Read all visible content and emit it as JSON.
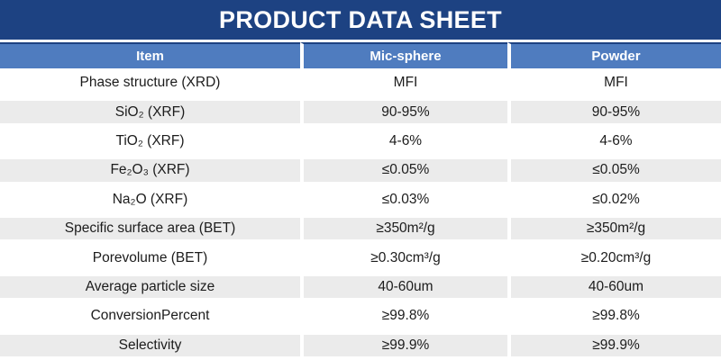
{
  "title": "PRODUCT DATA SHEET",
  "colors": {
    "banner": "#1D4282",
    "header": "#4F7CBF",
    "row_alt": "#EBEBEB",
    "text_dark": "#1C1C1C"
  },
  "table": {
    "columns": [
      "Item",
      "Mic-sphere",
      "Powder"
    ],
    "rows": [
      {
        "item": "Phase structure (XRD)",
        "mic_sphere": "MFI",
        "powder": "MFI"
      },
      {
        "item": "SiO₂ (XRF)",
        "mic_sphere": "90-95%",
        "powder": "90-95%"
      },
      {
        "item": "TiO₂ (XRF)",
        "mic_sphere": "4-6%",
        "powder": "4-6%"
      },
      {
        "item": "Fe₂O₃ (XRF)",
        "mic_sphere": "≤0.05%",
        "powder": "≤0.05%"
      },
      {
        "item": "Na₂O (XRF)",
        "mic_sphere": "≤0.03%",
        "powder": "≤0.02%"
      },
      {
        "item": "Specific surface area (BET)",
        "mic_sphere": "≥350m²/g",
        "powder": "≥350m²/g"
      },
      {
        "item": "Porevolume (BET)",
        "mic_sphere": "≥0.30cm³/g",
        "powder": "≥0.20cm³/g"
      },
      {
        "item": "Average particle size",
        "mic_sphere": "40-60um",
        "powder": "40-60um"
      },
      {
        "item": "ConversionPercent",
        "mic_sphere": "≥99.8%",
        "powder": "≥99.8%"
      },
      {
        "item": "Selectivity",
        "mic_sphere": "≥99.9%",
        "powder": "≥99.9%"
      }
    ]
  }
}
